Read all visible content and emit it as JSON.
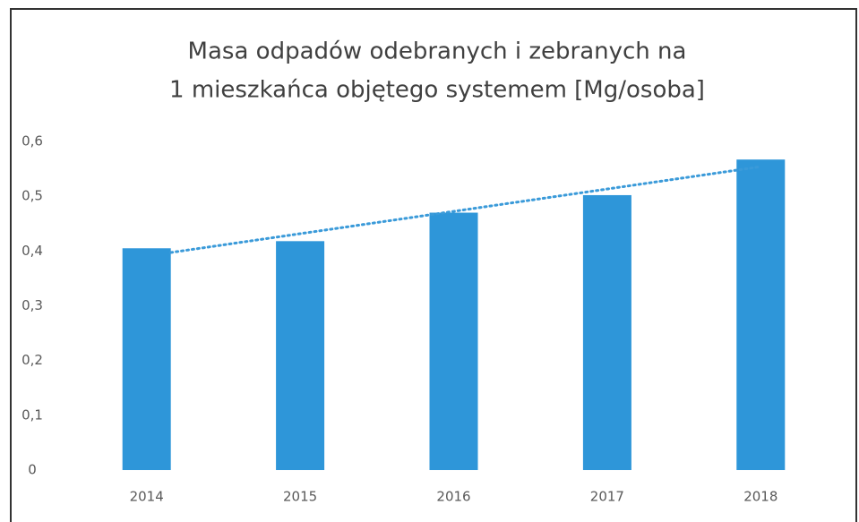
{
  "chart_data": {
    "type": "bar",
    "title": [
      "Masa odpadów odebranych i zebranych na",
      "1 mieszkańca objętego systemem [Mg/osoba]"
    ],
    "categories": [
      "2014",
      "2015",
      "2016",
      "2017",
      "2018"
    ],
    "values": [
      0.405,
      0.418,
      0.47,
      0.502,
      0.567
    ],
    "color": "#2e96d9",
    "trendline": true,
    "trendline_color": "#3a9ad9",
    "ylim": [
      0,
      0.6
    ],
    "yticks": [
      0,
      {
        "value": 0.1,
        "label": "0,1"
      },
      {
        "value": 0.2,
        "label": "0,2"
      },
      {
        "value": 0.3,
        "label": "0,3"
      },
      {
        "value": 0.4,
        "label": "0,4"
      },
      {
        "value": 0.5,
        "label": "0,5"
      },
      {
        "value": 0.6,
        "label": "0,6"
      }
    ],
    "grid": false
  }
}
